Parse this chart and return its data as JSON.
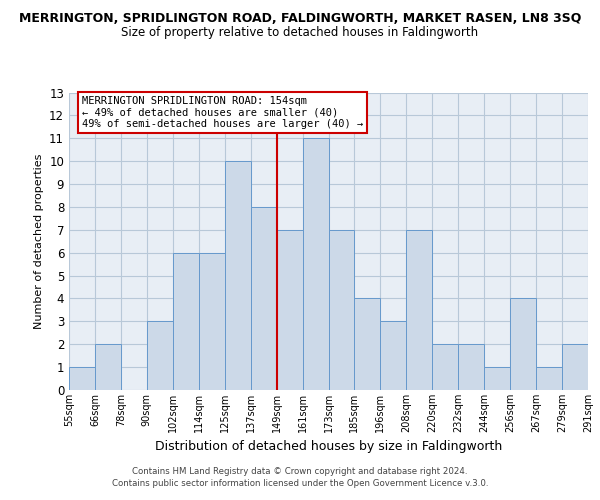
{
  "title": "MERRINGTON, SPRIDLINGTON ROAD, FALDINGWORTH, MARKET RASEN, LN8 3SQ",
  "subtitle": "Size of property relative to detached houses in Faldingworth",
  "xlabel": "Distribution of detached houses by size in Faldingworth",
  "ylabel": "Number of detached properties",
  "bin_labels": [
    "55sqm",
    "66sqm",
    "78sqm",
    "90sqm",
    "102sqm",
    "114sqm",
    "125sqm",
    "137sqm",
    "149sqm",
    "161sqm",
    "173sqm",
    "185sqm",
    "196sqm",
    "208sqm",
    "220sqm",
    "232sqm",
    "244sqm",
    "256sqm",
    "267sqm",
    "279sqm",
    "291sqm"
  ],
  "all_values": [
    1,
    2,
    0,
    3,
    6,
    6,
    10,
    8,
    7,
    11,
    7,
    4,
    3,
    7,
    2,
    2,
    1,
    4,
    1,
    2
  ],
  "bar_color": "#ccd9e8",
  "bar_edge_color": "#6699cc",
  "reference_line_index": 8,
  "reference_line_color": "#cc0000",
  "ylim": [
    0,
    13
  ],
  "yticks": [
    0,
    1,
    2,
    3,
    4,
    5,
    6,
    7,
    8,
    9,
    10,
    11,
    12,
    13
  ],
  "annotation_title": "MERRINGTON SPRIDLINGTON ROAD: 154sqm",
  "annotation_line1": "← 49% of detached houses are smaller (40)",
  "annotation_line2": "49% of semi-detached houses are larger (40) →",
  "annotation_box_color": "#ffffff",
  "annotation_border_color": "#cc0000",
  "footer_line1": "Contains HM Land Registry data © Crown copyright and database right 2024.",
  "footer_line2": "Contains public sector information licensed under the Open Government Licence v.3.0.",
  "background_color": "#ffffff",
  "plot_bg_color": "#e8eef5",
  "grid_color": "#b8c8d8"
}
